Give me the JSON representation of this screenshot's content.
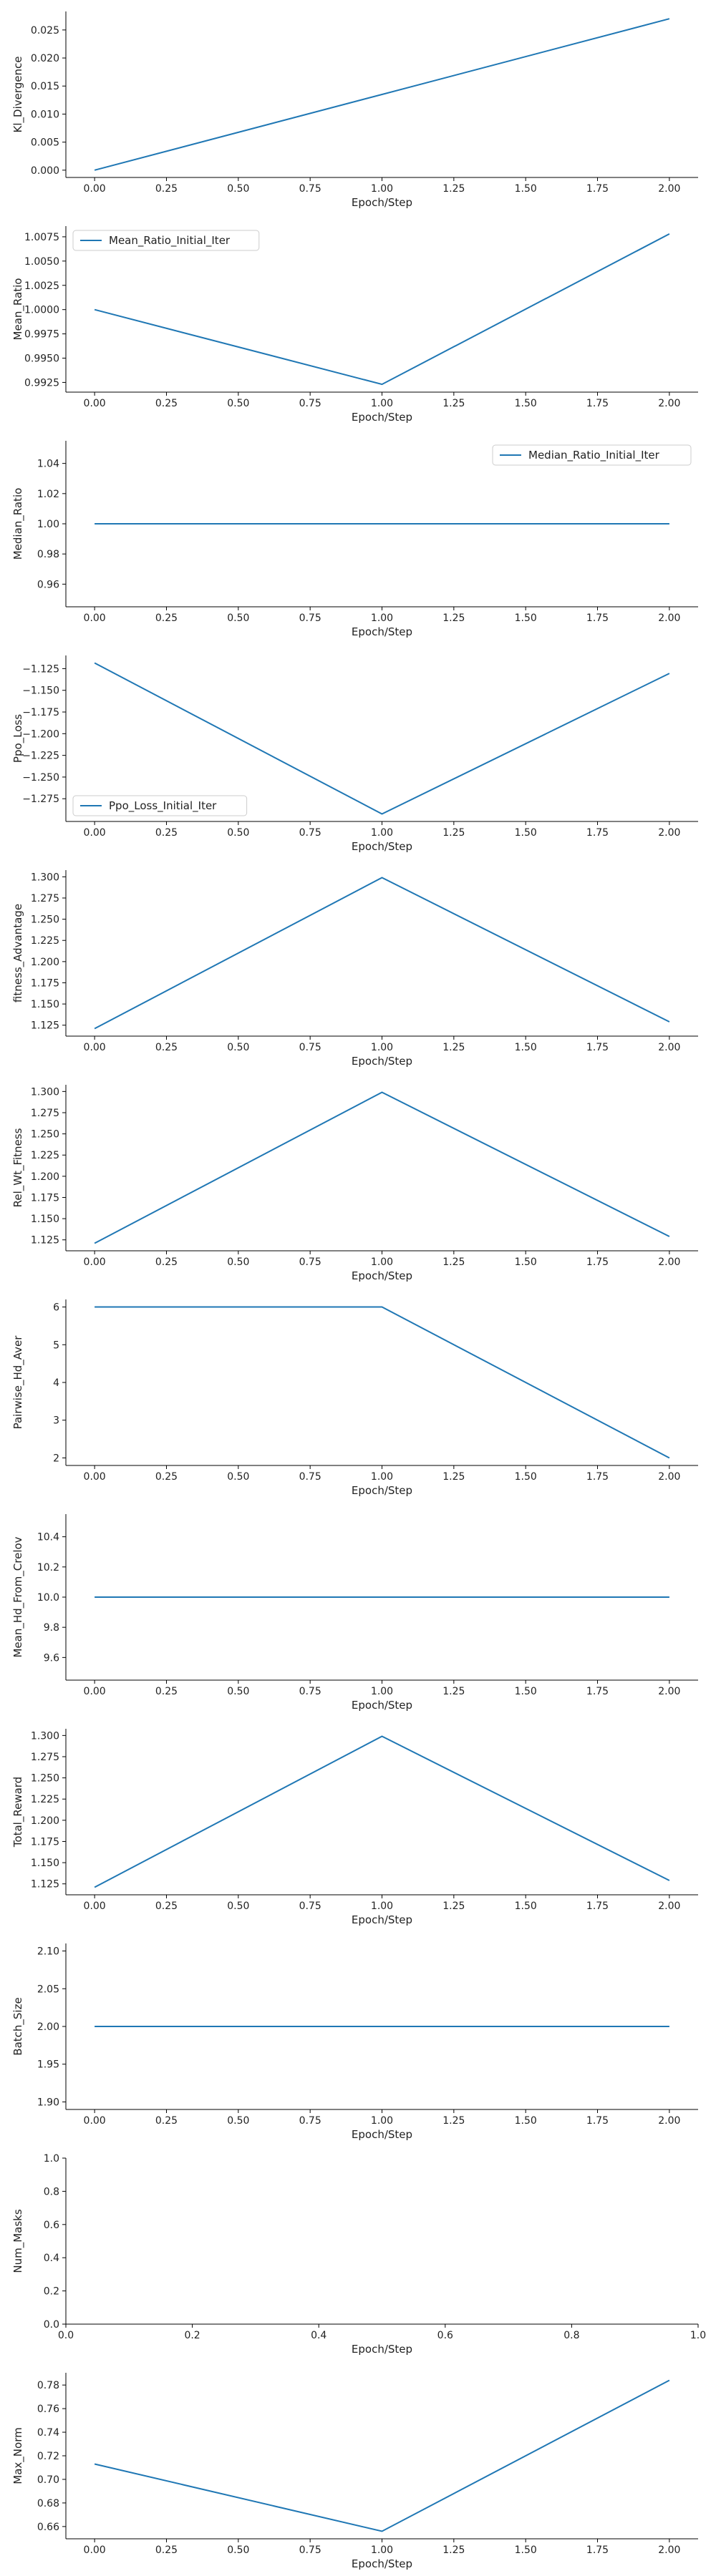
{
  "colors": {
    "line": "#1f77b4",
    "axis": "#000000",
    "legend_border": "#cccccc"
  },
  "chart_data": [
    {
      "type": "line",
      "ylabel": "Kl_Divergence",
      "xlabel": "Epoch/Step",
      "x": [
        0,
        1,
        2
      ],
      "series": [
        {
          "values": [
            0.0,
            0.0135,
            0.027
          ]
        }
      ],
      "xlim": [
        -0.1,
        2.1
      ],
      "ylim": [
        -0.0013,
        0.0283
      ],
      "xticks": [
        "0.00",
        "0.25",
        "0.50",
        "0.75",
        "1.00",
        "1.25",
        "1.50",
        "1.75",
        "2.00"
      ],
      "yticks": [
        "0.000",
        "0.005",
        "0.010",
        "0.015",
        "0.020",
        "0.025"
      ],
      "legend": null,
      "grid": false
    },
    {
      "type": "line",
      "ylabel": "Mean_Ratio",
      "xlabel": "Epoch/Step",
      "x": [
        0,
        1,
        2
      ],
      "series": [
        {
          "name": "Mean_Ratio_Initial_Iter",
          "values": [
            1.0,
            0.9923,
            1.0078
          ]
        }
      ],
      "xlim": [
        -0.1,
        2.1
      ],
      "ylim": [
        0.9915,
        1.0086
      ],
      "xticks": [
        "0.00",
        "0.25",
        "0.50",
        "0.75",
        "1.00",
        "1.25",
        "1.50",
        "1.75",
        "2.00"
      ],
      "yticks": [
        "0.9925",
        "0.9950",
        "0.9975",
        "1.0000",
        "1.0025",
        "1.0050",
        "1.0075"
      ],
      "legend": "upper-left",
      "grid": false
    },
    {
      "type": "line",
      "ylabel": "Median_Ratio",
      "xlabel": "Epoch/Step",
      "x": [
        0,
        1,
        2
      ],
      "series": [
        {
          "name": "Median_Ratio_Initial_Iter",
          "values": [
            1.0,
            1.0,
            1.0
          ]
        }
      ],
      "xlim": [
        -0.1,
        2.1
      ],
      "ylim": [
        0.945,
        1.055
      ],
      "xticks": [
        "0.00",
        "0.25",
        "0.50",
        "0.75",
        "1.00",
        "1.25",
        "1.50",
        "1.75",
        "2.00"
      ],
      "yticks": [
        "0.96",
        "0.98",
        "1.00",
        "1.02",
        "1.04"
      ],
      "legend": "upper-right",
      "grid": false
    },
    {
      "type": "line",
      "ylabel": "Ppo_Loss",
      "xlabel": "Epoch/Step",
      "x": [
        0,
        1,
        2
      ],
      "series": [
        {
          "name": "Ppo_Loss_Initial_Iter",
          "values": [
            -1.1185,
            -1.2925,
            -1.1305
          ]
        }
      ],
      "xlim": [
        -0.1,
        2.1
      ],
      "ylim": [
        -1.3012,
        -1.1098
      ],
      "xticks": [
        "0.00",
        "0.25",
        "0.50",
        "0.75",
        "1.00",
        "1.25",
        "1.50",
        "1.75",
        "2.00"
      ],
      "yticks": [
        "−1.125",
        "−1.150",
        "−1.175",
        "−1.200",
        "−1.225",
        "−1.250",
        "−1.275"
      ],
      "legend": "lower-left",
      "grid": false
    },
    {
      "type": "line",
      "ylabel": "fitness_Advantage",
      "xlabel": "Epoch/Step",
      "x": [
        0,
        1,
        2
      ],
      "series": [
        {
          "values": [
            1.121,
            1.299,
            1.129
          ]
        }
      ],
      "xlim": [
        -0.1,
        2.1
      ],
      "ylim": [
        1.1121,
        1.3079
      ],
      "xticks": [
        "0.00",
        "0.25",
        "0.50",
        "0.75",
        "1.00",
        "1.25",
        "1.50",
        "1.75",
        "2.00"
      ],
      "yticks": [
        "1.125",
        "1.150",
        "1.175",
        "1.200",
        "1.225",
        "1.250",
        "1.275",
        "1.300"
      ],
      "legend": null,
      "grid": false
    },
    {
      "type": "line",
      "ylabel": "Rel_Wt_Fitness",
      "xlabel": "Epoch/Step",
      "x": [
        0,
        1,
        2
      ],
      "series": [
        {
          "values": [
            1.121,
            1.299,
            1.129
          ]
        }
      ],
      "xlim": [
        -0.1,
        2.1
      ],
      "ylim": [
        1.1121,
        1.3079
      ],
      "xticks": [
        "0.00",
        "0.25",
        "0.50",
        "0.75",
        "1.00",
        "1.25",
        "1.50",
        "1.75",
        "2.00"
      ],
      "yticks": [
        "1.125",
        "1.150",
        "1.175",
        "1.200",
        "1.225",
        "1.250",
        "1.275",
        "1.300"
      ],
      "legend": null,
      "grid": false
    },
    {
      "type": "line",
      "ylabel": "Pairwise_Hd_Aver",
      "xlabel": "Epoch/Step",
      "x": [
        0,
        1,
        2
      ],
      "series": [
        {
          "values": [
            6,
            6,
            2
          ]
        }
      ],
      "xlim": [
        -0.1,
        2.1
      ],
      "ylim": [
        1.8,
        6.2
      ],
      "xticks": [
        "0.00",
        "0.25",
        "0.50",
        "0.75",
        "1.00",
        "1.25",
        "1.50",
        "1.75",
        "2.00"
      ],
      "yticks": [
        "2",
        "3",
        "4",
        "5",
        "6"
      ],
      "legend": null,
      "grid": false
    },
    {
      "type": "line",
      "ylabel": "Mean_Hd_From_Crelov",
      "xlabel": "Epoch/Step",
      "x": [
        0,
        1,
        2
      ],
      "series": [
        {
          "values": [
            10.0,
            10.0,
            10.0
          ]
        }
      ],
      "xlim": [
        -0.1,
        2.1
      ],
      "ylim": [
        9.45,
        10.55
      ],
      "xticks": [
        "0.00",
        "0.25",
        "0.50",
        "0.75",
        "1.00",
        "1.25",
        "1.50",
        "1.75",
        "2.00"
      ],
      "yticks": [
        "9.6",
        "9.8",
        "10.0",
        "10.2",
        "10.4"
      ],
      "legend": null,
      "grid": false
    },
    {
      "type": "line",
      "ylabel": "Total_Reward",
      "xlabel": "Epoch/Step",
      "x": [
        0,
        1,
        2
      ],
      "series": [
        {
          "values": [
            1.121,
            1.299,
            1.129
          ]
        }
      ],
      "xlim": [
        -0.1,
        2.1
      ],
      "ylim": [
        1.1121,
        1.3079
      ],
      "xticks": [
        "0.00",
        "0.25",
        "0.50",
        "0.75",
        "1.00",
        "1.25",
        "1.50",
        "1.75",
        "2.00"
      ],
      "yticks": [
        "1.125",
        "1.150",
        "1.175",
        "1.200",
        "1.225",
        "1.250",
        "1.275",
        "1.300"
      ],
      "legend": null,
      "grid": false
    },
    {
      "type": "line",
      "ylabel": "Batch_Size",
      "xlabel": "Epoch/Step",
      "x": [
        0,
        1,
        2
      ],
      "series": [
        {
          "values": [
            2.0,
            2.0,
            2.0
          ]
        }
      ],
      "xlim": [
        -0.1,
        2.1
      ],
      "ylim": [
        1.89,
        2.11
      ],
      "xticks": [
        "0.00",
        "0.25",
        "0.50",
        "0.75",
        "1.00",
        "1.25",
        "1.50",
        "1.75",
        "2.00"
      ],
      "yticks": [
        "1.90",
        "1.95",
        "2.00",
        "2.05",
        "2.10"
      ],
      "legend": null,
      "grid": false
    },
    {
      "type": "line",
      "ylabel": "Num_Masks",
      "xlabel": "Epoch/Step",
      "x": [],
      "series": [],
      "xlim": [
        0,
        1
      ],
      "ylim": [
        0,
        1
      ],
      "xticks": [
        "0.0",
        "0.2",
        "0.4",
        "0.6",
        "0.8",
        "1.0"
      ],
      "yticks": [
        "0.0",
        "0.2",
        "0.4",
        "0.6",
        "0.8",
        "1.0"
      ],
      "legend": null,
      "grid": false
    },
    {
      "type": "line",
      "ylabel": "Max_Norm",
      "xlabel": "Epoch/Step",
      "x": [
        0,
        1,
        2
      ],
      "series": [
        {
          "values": [
            0.713,
            0.656,
            0.784
          ]
        }
      ],
      "xlim": [
        -0.1,
        2.1
      ],
      "ylim": [
        0.6496,
        0.7904
      ],
      "xticks": [
        "0.00",
        "0.25",
        "0.50",
        "0.75",
        "1.00",
        "1.25",
        "1.50",
        "1.75",
        "2.00"
      ],
      "yticks": [
        "0.66",
        "0.68",
        "0.70",
        "0.72",
        "0.74",
        "0.76",
        "0.78"
      ],
      "legend": null,
      "grid": false
    }
  ]
}
